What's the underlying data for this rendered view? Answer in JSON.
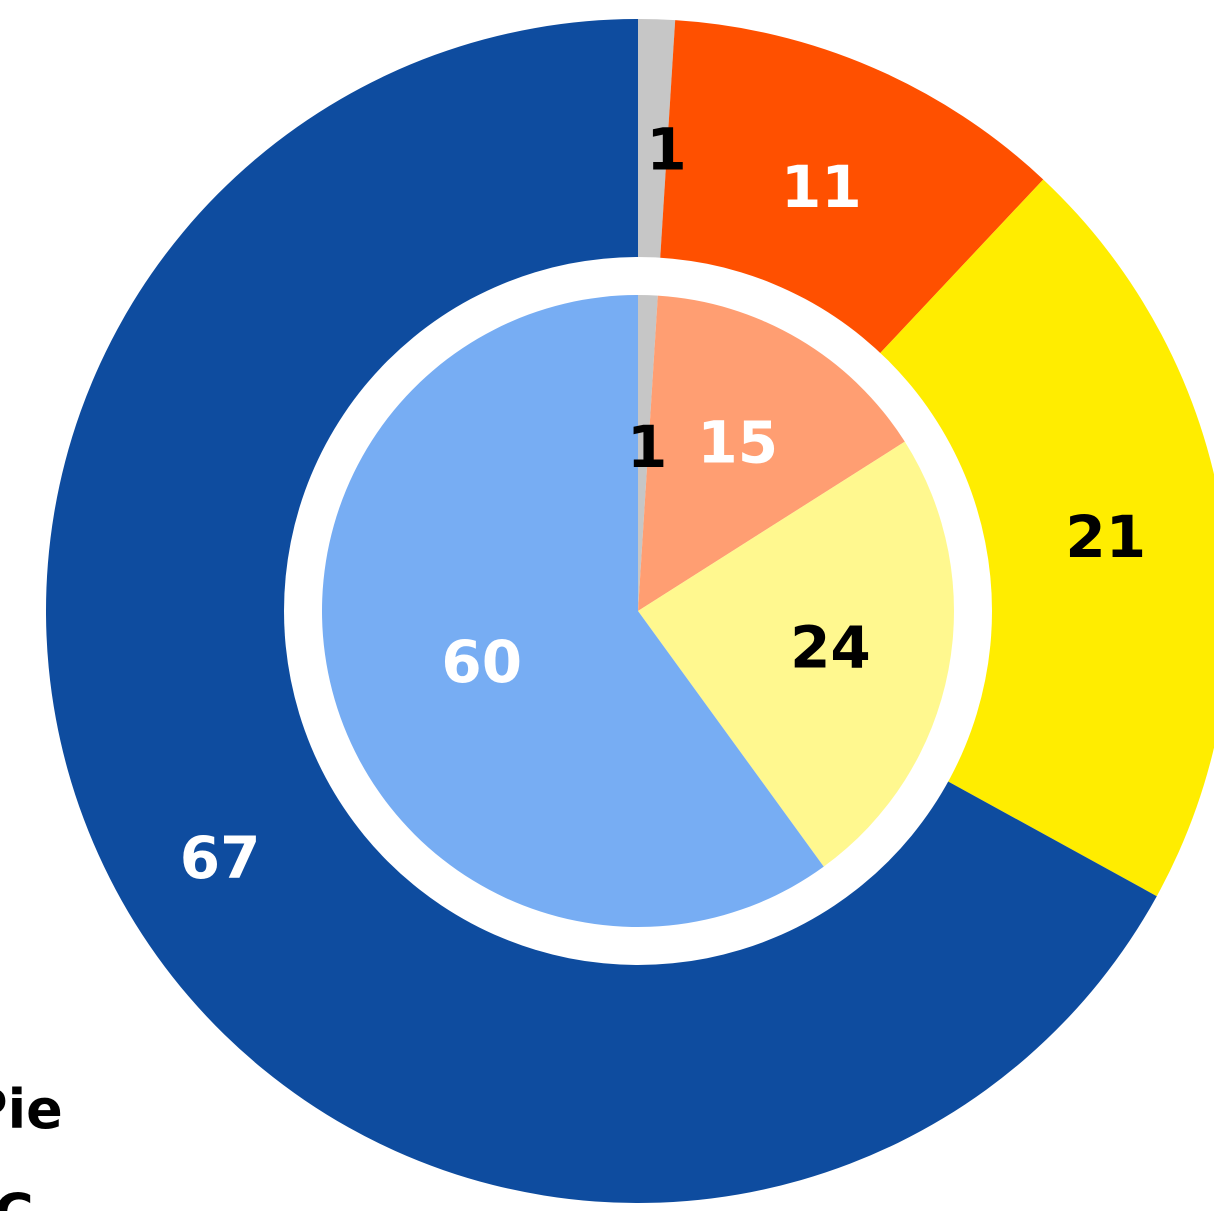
{
  "chart_data": [
    {
      "type": "pie",
      "ring": "outer",
      "slices": [
        {
          "value": 1,
          "label": "1",
          "color": "#c6c6c6",
          "label_color": "#000000"
        },
        {
          "value": 11,
          "label": "11",
          "color": "#ff5000",
          "label_color": "#ffffff"
        },
        {
          "value": 21,
          "label": "21",
          "color": "#ffed00",
          "label_color": "#000000"
        },
        {
          "value": 67,
          "label": "67",
          "color": "#0e4c9f",
          "label_color": "#ffffff"
        }
      ]
    },
    {
      "type": "pie",
      "ring": "inner",
      "slices": [
        {
          "value": 1,
          "label": "1",
          "color": "#c6c6c6",
          "label_color": "#000000"
        },
        {
          "value": 15,
          "label": "15",
          "color": "#ff9e72",
          "label_color": "#ffffff"
        },
        {
          "value": 24,
          "label": "24",
          "color": "#fff88f",
          "label_color": "#000000"
        },
        {
          "value": 60,
          "label": "60",
          "color": "#77adf3",
          "label_color": "#ffffff"
        }
      ]
    }
  ],
  "cutoff_text": {
    "line1": "Pie",
    "line2": "C"
  }
}
